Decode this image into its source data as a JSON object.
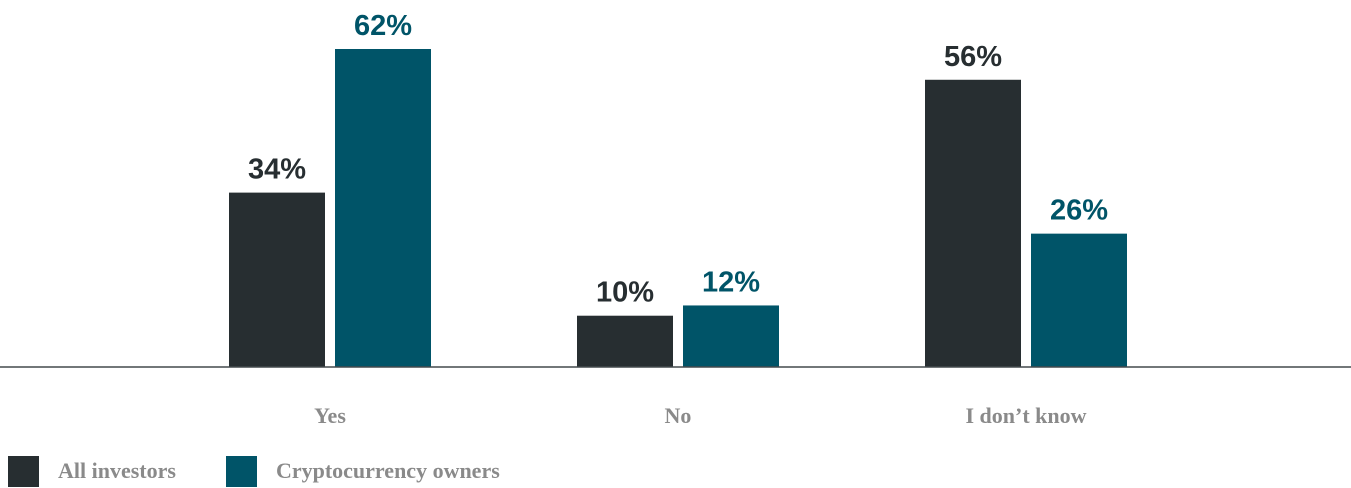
{
  "chart_data": {
    "type": "bar",
    "categories": [
      "Yes",
      "No",
      "I don’t know"
    ],
    "series": [
      {
        "name": "All investors",
        "values": [
          34,
          10,
          56
        ],
        "labels": [
          "34%",
          "10%",
          "56%"
        ],
        "color": "#272e31"
      },
      {
        "name": "Cryptocurrency owners",
        "values": [
          62,
          12,
          26
        ],
        "labels": [
          "62%",
          "12%",
          "26%"
        ],
        "color": "#005468"
      }
    ],
    "ylim": [
      0,
      62
    ],
    "grid": false,
    "legend_position": "bottom-left"
  }
}
